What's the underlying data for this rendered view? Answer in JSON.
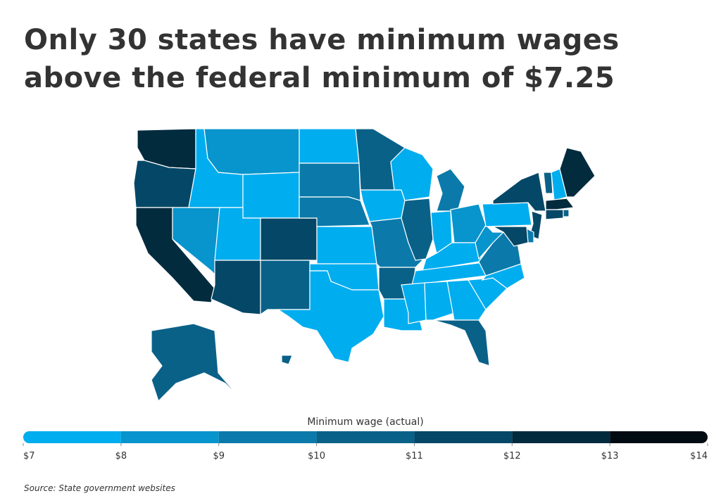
{
  "chart_data": {
    "type": "choropleth",
    "title": "Only 30 states have minimum wages above the federal minimum of $7.25",
    "legend_title": "Minimum wage (actual)",
    "source": "Source:  State government websites",
    "values": [
      12,
      11.25,
      12,
      8.25,
      7.25,
      8.5,
      7.25,
      7.25,
      11,
      11.1,
      10.5,
      7.25,
      9.3,
      9,
      7.25,
      7.25,
      7.25,
      10,
      7.25,
      9.45,
      10,
      7.25,
      7.25,
      10.5,
      9.65,
      7.25,
      8.7,
      7.25,
      7.25,
      7.25,
      7.25,
      7.25,
      10.5,
      7.25,
      7.25,
      9.5,
      8.75,
      7.25,
      11.8,
      10.96,
      7.25,
      12,
      12.75,
      10.5,
      11,
      11,
      9.25,
      11,
      10.19,
      10.1
    ],
    "xlim": [
      7,
      14
    ],
    "ticks": [
      {
        "value": 7,
        "label": "$7"
      },
      {
        "value": 8,
        "label": "$8"
      },
      {
        "value": 9,
        "label": "$9"
      },
      {
        "value": 10,
        "label": "$10"
      },
      {
        "value": 11,
        "label": "$11"
      },
      {
        "value": 12,
        "label": "$12"
      },
      {
        "value": 13,
        "label": "$13"
      },
      {
        "value": 14,
        "label": "$14"
      }
    ],
    "colors": [
      "#00adef",
      "#0894cc",
      "#0b7aaa",
      "#0a6188",
      "#054766",
      "#022b3e",
      "#000b12"
    ]
  }
}
